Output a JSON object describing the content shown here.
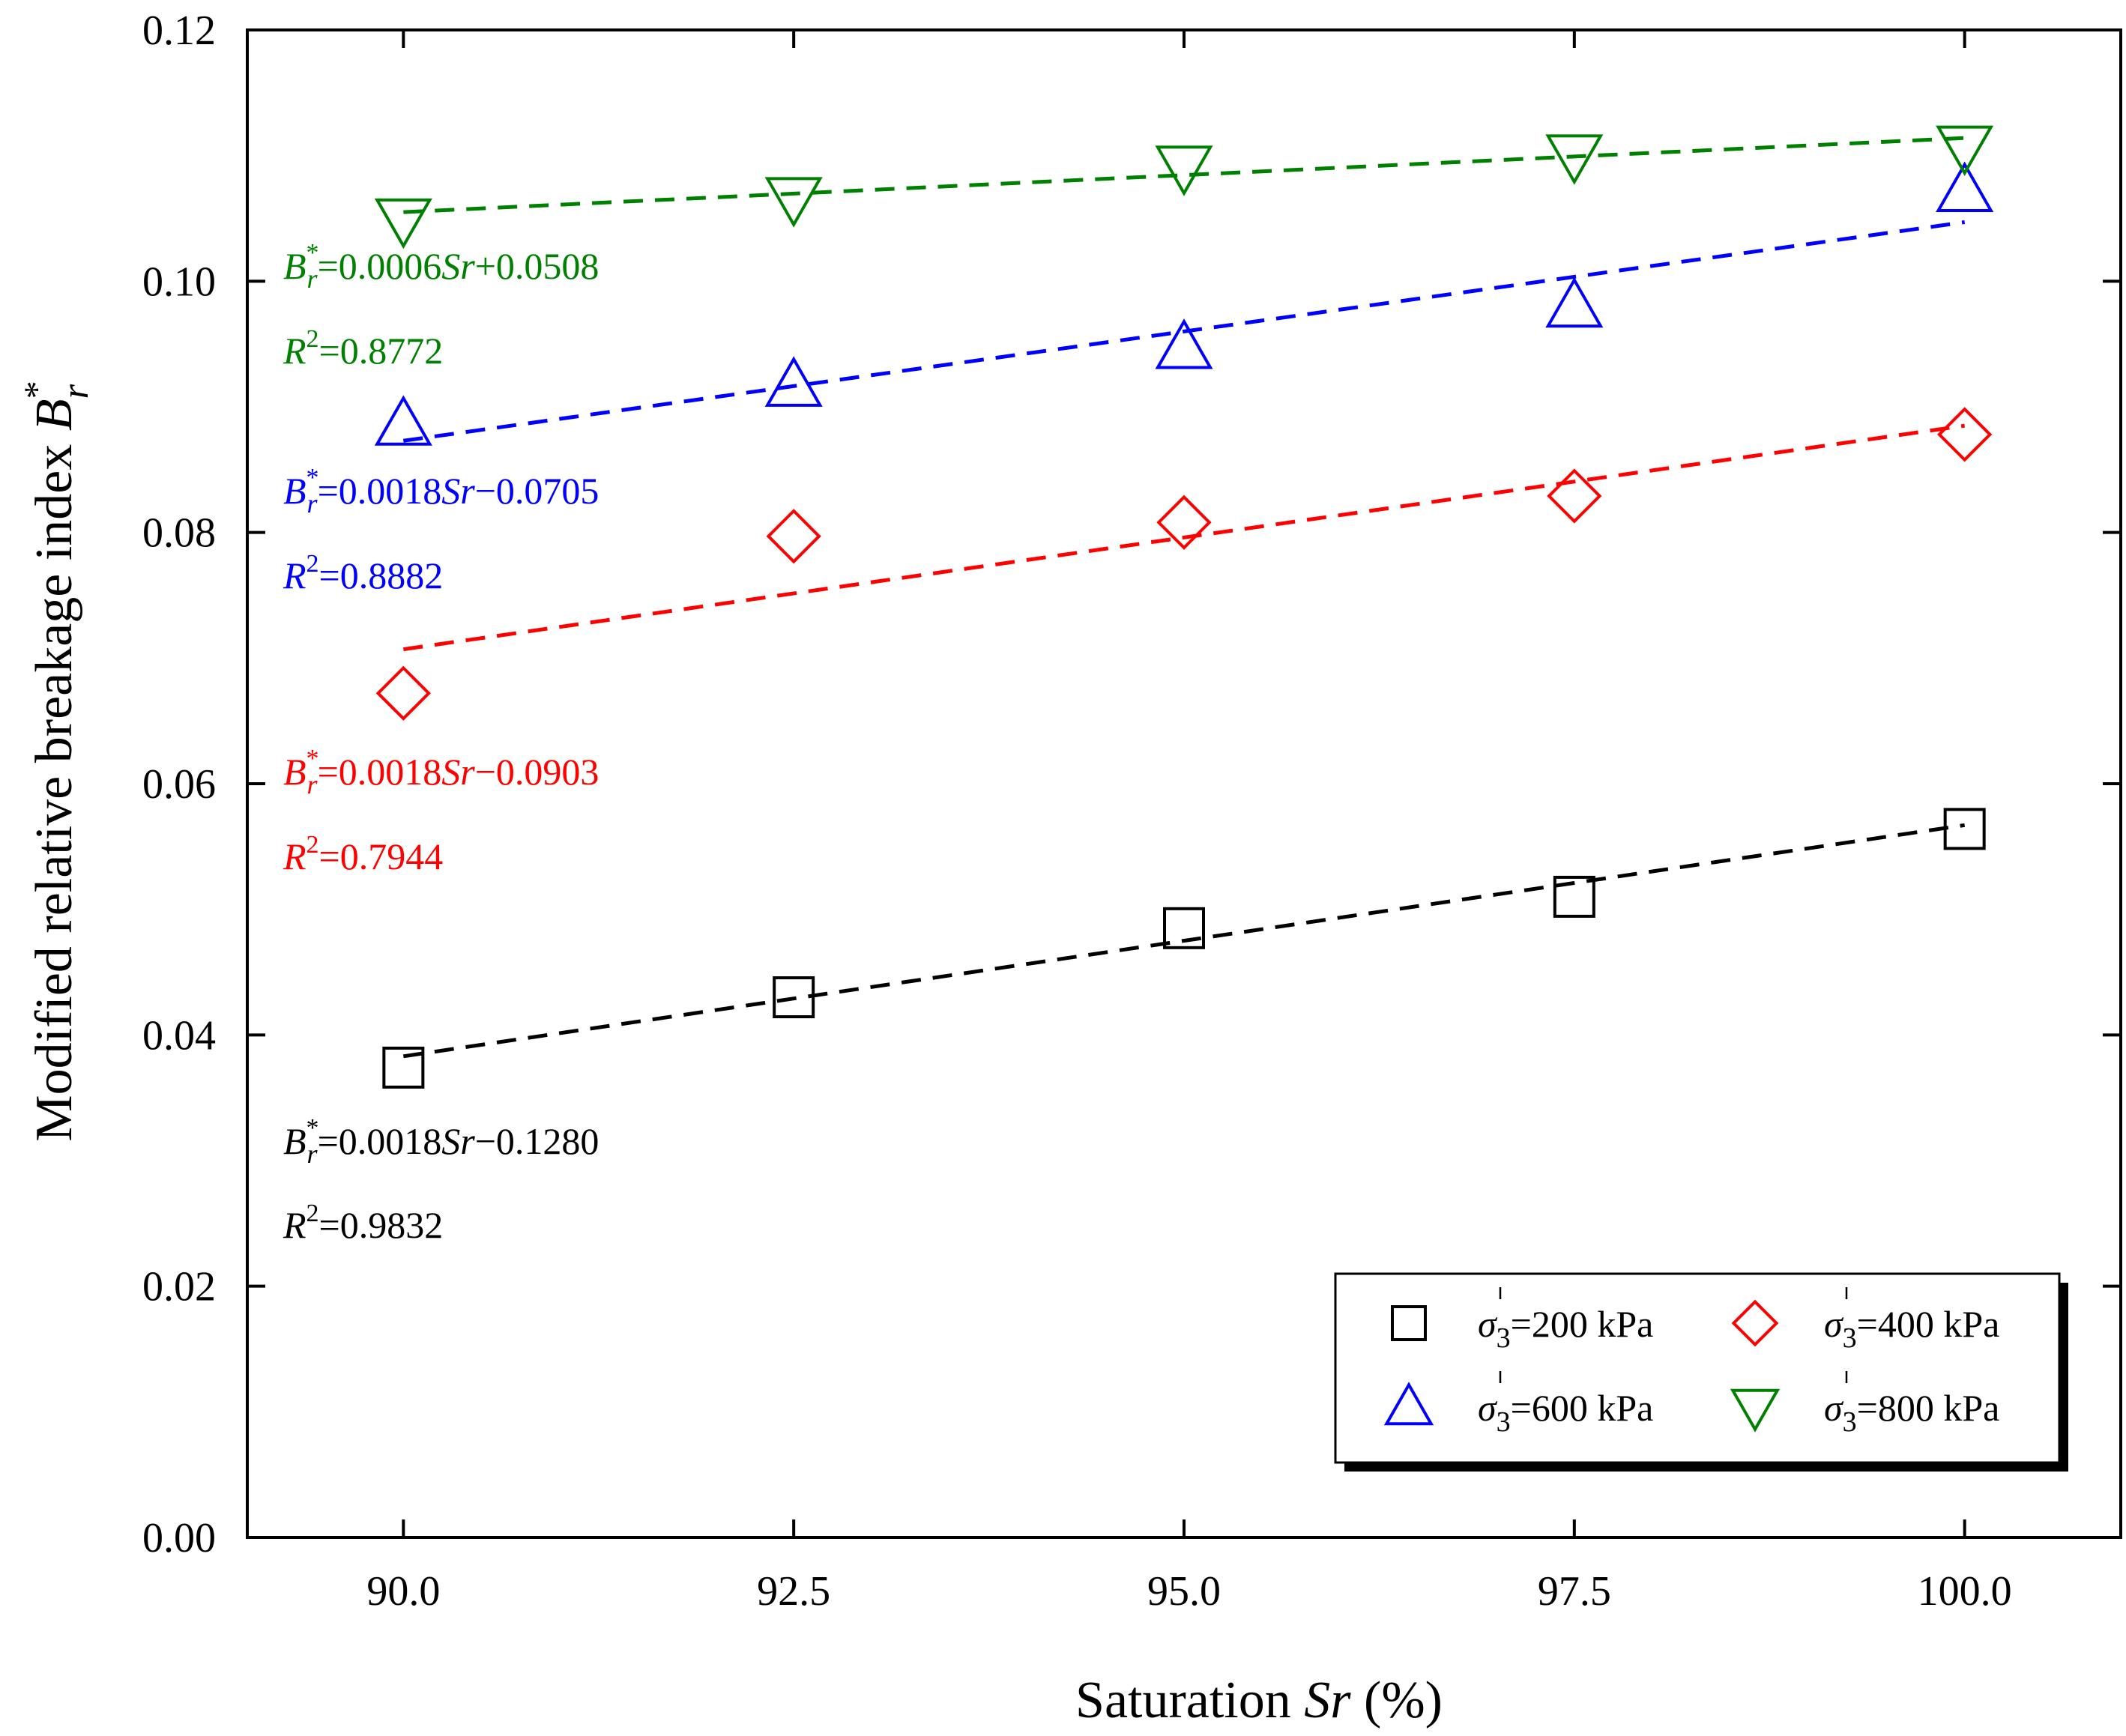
{
  "chart_data": {
    "type": "scatter",
    "xlabel": "Saturation Sr (%)",
    "xlabel_parts": {
      "prefix": "Saturation ",
      "italic": "Sr",
      "suffix": " (%)"
    },
    "ylabel": "Modified relative breakage index B*r",
    "ylabel_parts": {
      "prefix": "Modified relative breakage index ",
      "italic": "B",
      "sup": "*",
      "sub": "r"
    },
    "xlim": [
      89.0,
      101.0
    ],
    "ylim": [
      0.0,
      0.12
    ],
    "x_ticks": [
      90.0,
      92.5,
      95.0,
      97.5,
      100.0
    ],
    "x_tick_labels": [
      "90.0",
      "92.5",
      "95.0",
      "97.5",
      "100.0"
    ],
    "y_ticks": [
      0.0,
      0.02,
      0.04,
      0.06,
      0.08,
      0.1,
      0.12
    ],
    "y_tick_labels": [
      "0.00",
      "0.02",
      "0.04",
      "0.06",
      "0.08",
      "0.10",
      "0.12"
    ],
    "grid": false,
    "legend_position": "bottom-right",
    "series": [
      {
        "name": "σ′3=200 kPa",
        "legend_symbol": "σ",
        "legend_sub": "3",
        "legend_rest": "=200 kPa",
        "marker": "square",
        "color": "#000000",
        "x": [
          90.0,
          92.5,
          95.0,
          97.5,
          100.0
        ],
        "values": [
          0.0374,
          0.043,
          0.0485,
          0.051,
          0.0564
        ],
        "fit": {
          "x": [
            90.0,
            100.0
          ],
          "y": [
            0.0383,
            0.0567
          ]
        },
        "equation": {
          "coef": "0.0018",
          "sign": "−",
          "intercept": "0.1280",
          "r2": "0.9832"
        }
      },
      {
        "name": "σ′3=400 kPa",
        "legend_symbol": "σ",
        "legend_sub": "3",
        "legend_rest": "=400 kPa",
        "marker": "diamond",
        "color": "#ff0000",
        "x": [
          90.0,
          92.5,
          95.0,
          97.5,
          100.0
        ],
        "values": [
          0.0672,
          0.0797,
          0.0808,
          0.0829,
          0.0878
        ],
        "fit": {
          "x": [
            90.0,
            100.0
          ],
          "y": [
            0.0707,
            0.0885
          ]
        },
        "equation": {
          "coef": "0.0018",
          "sign": "−",
          "intercept": "0.0903",
          "r2": "0.7944"
        }
      },
      {
        "name": "σ′3=600 kPa",
        "legend_symbol": "σ",
        "legend_sub": "3",
        "legend_rest": "=600 kPa",
        "marker": "triangle-up",
        "color": "#0000ff",
        "x": [
          90.0,
          92.5,
          95.0,
          97.5,
          100.0
        ],
        "values": [
          0.0886,
          0.0917,
          0.0947,
          0.098,
          0.1072
        ],
        "fit": {
          "x": [
            90.0,
            100.0
          ],
          "y": [
            0.0873,
            0.1047
          ]
        },
        "equation": {
          "coef": "0.0018",
          "sign": "−",
          "intercept": "0.0705",
          "r2": "0.8882"
        }
      },
      {
        "name": "σ′3=800 kPa",
        "legend_symbol": "σ",
        "legend_sub": "3",
        "legend_rest": "=800 kPa",
        "marker": "triangle-down",
        "color": "#008000",
        "x": [
          90.0,
          92.5,
          95.0,
          97.5,
          100.0
        ],
        "values": [
          0.1049,
          0.1066,
          0.1091,
          0.11,
          0.1107
        ],
        "fit": {
          "x": [
            90.0,
            100.0
          ],
          "y": [
            0.1055,
            0.1114
          ]
        },
        "equation": {
          "coef": "0.0006",
          "sign": "+",
          "intercept": "0.0508",
          "r2": "0.8772"
        }
      }
    ]
  },
  "equation_labels": {
    "var": "B",
    "sup": "*",
    "sub": "r",
    "x": "Sr",
    "eq": "=",
    "r": "R",
    "r_sup": "2"
  }
}
